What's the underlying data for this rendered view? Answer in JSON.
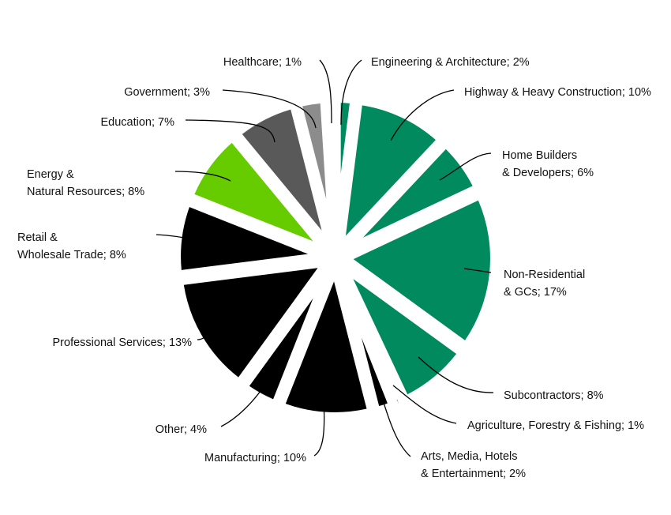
{
  "chart_data": {
    "type": "pie",
    "title": "",
    "unit": "%",
    "slices": [
      {
        "name": "Engineering & Architecture",
        "value": 2,
        "label_lines": [
          "Engineering & Architecture; 2%"
        ],
        "color": "#008a5e"
      },
      {
        "name": "Highway & Heavy Construction",
        "value": 10,
        "label_lines": [
          "Highway & Heavy Construction; 10%"
        ],
        "color": "#008a5e"
      },
      {
        "name": "Home Builders & Developers",
        "value": 6,
        "label_lines": [
          "Home Builders",
          "& Developers; 6%"
        ],
        "color": "#008a5e"
      },
      {
        "name": "Non-Residential & GCs",
        "value": 17,
        "label_lines": [
          "Non-Residential",
          "& GCs; 17%"
        ],
        "color": "#008a5e"
      },
      {
        "name": "Subcontractors",
        "value": 8,
        "label_lines": [
          "Subcontractors; 8%"
        ],
        "color": "#008a5e"
      },
      {
        "name": "Agriculture, Forestry & Fishing",
        "value": 1,
        "label_lines": [
          "Agriculture, Forestry & Fishing; 1%"
        ],
        "color": "#000000"
      },
      {
        "name": "Arts, Media, Hotels & Entertainment",
        "value": 2,
        "label_lines": [
          "Arts, Media, Hotels",
          "& Entertainment; 2%"
        ],
        "color": "#000000"
      },
      {
        "name": "Manufacturing",
        "value": 10,
        "label_lines": [
          "Manufacturing; 10%"
        ],
        "color": "#000000"
      },
      {
        "name": "Other",
        "value": 4,
        "label_lines": [
          "Other; 4%"
        ],
        "color": "#000000"
      },
      {
        "name": "Professional Services",
        "value": 13,
        "label_lines": [
          "Professional Services; 13%"
        ],
        "color": "#000000"
      },
      {
        "name": "Retail & Wholesale Trade",
        "value": 8,
        "label_lines": [
          "Retail &",
          "Wholesale Trade; 8%"
        ],
        "color": "#000000"
      },
      {
        "name": "Energy & Natural Resources",
        "value": 8,
        "label_lines": [
          "Energy &",
          "Natural Resources; 8%"
        ],
        "color": "#66cc00"
      },
      {
        "name": "Education",
        "value": 7,
        "label_lines": [
          "Education; 7%"
        ],
        "color": "#595959"
      },
      {
        "name": "Government",
        "value": 3,
        "label_lines": [
          "Government; 3%"
        ],
        "color": "#8c8c8c"
      },
      {
        "name": "Healthcare",
        "value": 1,
        "label_lines": [
          "Healthcare; 1%"
        ],
        "color": "#92d050"
      }
    ]
  }
}
